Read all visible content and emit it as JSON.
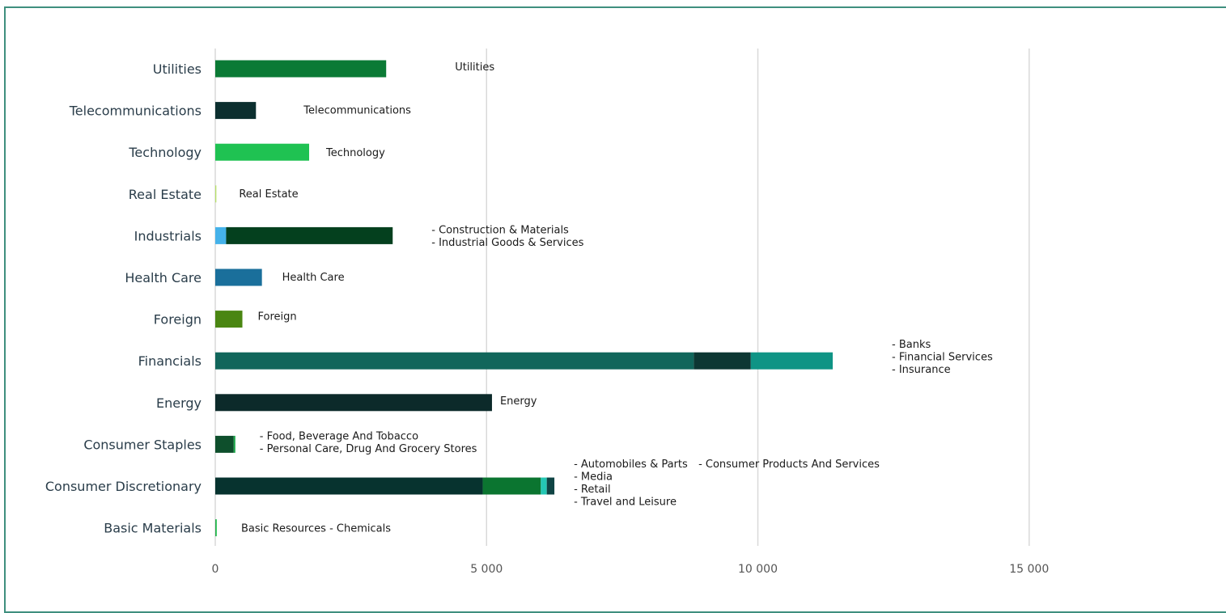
{
  "chart_data": {
    "type": "bar",
    "orientation": "horizontal",
    "stacked": true,
    "xlim": [
      0,
      18500
    ],
    "xticks": [
      0,
      5000,
      10000,
      15000
    ],
    "xtick_labels": [
      "0",
      "5 000",
      "10 000",
      "15 000"
    ],
    "grid": "vertical",
    "categories": [
      {
        "label": "Utilities",
        "segments": [
          {
            "value": 3150,
            "color": "#0b7a35"
          }
        ],
        "annotation": [
          "Utilities"
        ]
      },
      {
        "label": "Telecommunications",
        "segments": [
          {
            "value": 750,
            "color": "#0c2f2f"
          }
        ],
        "annotation": [
          "Telecommunications"
        ]
      },
      {
        "label": "Technology",
        "segments": [
          {
            "value": 1730,
            "color": "#1fc252"
          }
        ],
        "annotation": [
          "Technology"
        ]
      },
      {
        "label": "Real Estate",
        "segments": [
          {
            "value": 20,
            "color": "#b8e06a"
          }
        ],
        "annotation": [
          "Real Estate"
        ]
      },
      {
        "label": "Industrials",
        "segments": [
          {
            "value": 200,
            "color": "#45b2ea"
          },
          {
            "value": 3070,
            "color": "#04401e"
          }
        ],
        "annotation": [
          "- Construction & Materials",
          "- Industrial Goods & Services"
        ]
      },
      {
        "label": "Health Care",
        "segments": [
          {
            "value": 860,
            "color": "#1a6f9b"
          }
        ],
        "annotation": [
          "Health Care"
        ]
      },
      {
        "label": "Foreign",
        "segments": [
          {
            "value": 500,
            "color": "#4a8612"
          }
        ],
        "annotation": [
          "Foreign"
        ]
      },
      {
        "label": "Financials",
        "segments": [
          {
            "value": 8820,
            "color": "#11665b"
          },
          {
            "value": 1050,
            "color": "#0d3733"
          },
          {
            "value": 1510,
            "color": "#0f9485"
          }
        ],
        "annotation": [
          "- Banks",
          "- Financial Services",
          "- Insurance"
        ]
      },
      {
        "label": "Energy",
        "segments": [
          {
            "value": 5100,
            "color": "#0c2a2a"
          }
        ],
        "annotation": [
          "Energy"
        ]
      },
      {
        "label": "Consumer Staples",
        "segments": [
          {
            "value": 340,
            "color": "#0e4f2c"
          },
          {
            "value": 30,
            "color": "#1ba84a"
          }
        ],
        "annotation": [
          "- Food, Beverage And Tobacco",
          "- Personal Care, Drug And Grocery Stores"
        ]
      },
      {
        "label": "Consumer Discretionary",
        "segments": [
          {
            "value": 4930,
            "color": "#07332f"
          },
          {
            "value": 1070,
            "color": "#0b7530"
          },
          {
            "value": 110,
            "color": "#24c7b4"
          },
          {
            "value": 140,
            "color": "#0f4444"
          }
        ],
        "annotation": [
          "- Automobiles & Parts",
          "- Media",
          "- Retail",
          "- Travel and Leisure"
        ],
        "annotation_extra": "- Consumer Products And Services"
      },
      {
        "label": "Basic Materials",
        "segments": [
          {
            "value": 15,
            "color": "#2ea84e"
          },
          {
            "value": 15,
            "color": "#3fd06a"
          }
        ],
        "annotation": [
          "Basic Resources - Chemicals"
        ]
      }
    ]
  }
}
